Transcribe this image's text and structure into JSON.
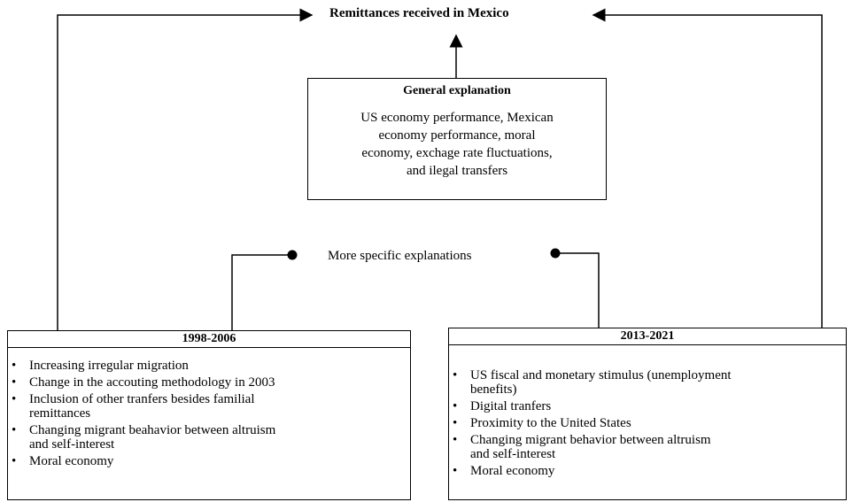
{
  "title": "Remittances received in Mexico",
  "general": {
    "title": "General explanation",
    "lines": [
      "US economy performance, Mexican",
      "economy performance, moral",
      "economy, exchage rate fluctuations,",
      "and ilegal transfers"
    ]
  },
  "connector_label": "More specific explanations",
  "left": {
    "title": "1998-2006",
    "items": [
      [
        "Increasing irregular migration"
      ],
      [
        "Change in the accouting methodology in 2003"
      ],
      [
        "Inclusion of other tranfers besides familial",
        "remittances"
      ],
      [
        "Changing migrant beahavior between altruism",
        "and self-interest"
      ],
      [
        "Moral economy"
      ]
    ]
  },
  "right": {
    "title": "2013-2021",
    "items": [
      [
        "US fiscal and monetary stimulus (unemployment",
        "benefits)"
      ],
      [
        "Digital tranfers"
      ],
      [
        "Proximity to the United States"
      ],
      [
        "Changing migrant behavior between altruism",
        "and self-interest"
      ],
      [
        "Moral economy"
      ]
    ]
  }
}
